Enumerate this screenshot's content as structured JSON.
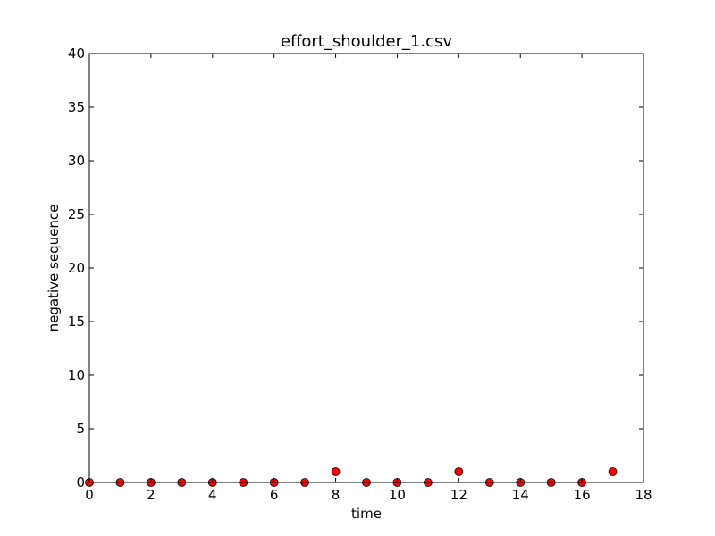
{
  "chart_data": {
    "type": "scatter",
    "title": "effort_shoulder_1.csv",
    "xlabel": "time",
    "ylabel": "negative sequence",
    "xlim": [
      0,
      18
    ],
    "ylim": [
      0,
      40
    ],
    "xticks": [
      "0",
      "2",
      "4",
      "6",
      "8",
      "10",
      "12",
      "14",
      "16",
      "18"
    ],
    "yticks": [
      "0",
      "5",
      "10",
      "15",
      "20",
      "25",
      "30",
      "35",
      "40"
    ],
    "grid": false,
    "marker_color": "#ff0000",
    "marker_edge_color": "#000000",
    "series": [
      {
        "x": [
          0,
          1,
          2,
          3,
          4,
          5,
          6,
          7,
          8,
          9,
          10,
          11,
          12,
          13,
          14,
          15,
          16,
          17
        ],
        "y": [
          0,
          0,
          0,
          0,
          0,
          0,
          0,
          0,
          1,
          0,
          0,
          0,
          1,
          0,
          0,
          0,
          0,
          1
        ]
      }
    ]
  }
}
